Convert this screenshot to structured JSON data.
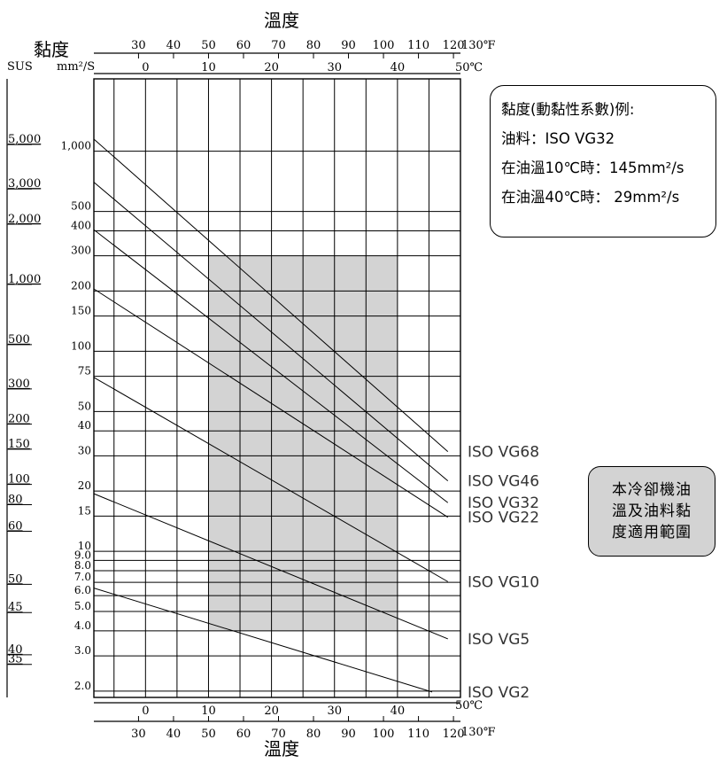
{
  "chart_data": {
    "type": "line",
    "title": "",
    "x_axis_title": "溫度",
    "y_axis_title": "黏度",
    "x_celsius": {
      "unit": "50℃",
      "ticks": [
        0,
        10,
        20,
        30,
        40
      ],
      "range": [
        -8.2,
        50
      ]
    },
    "x_fahrenheit": {
      "unit": "130℉",
      "ticks": [
        30,
        40,
        50,
        60,
        70,
        80,
        90,
        100,
        110,
        120
      ]
    },
    "y_kinematic": {
      "unit": "mm²/S",
      "scale": "log",
      "range": [
        1.86,
        2300
      ],
      "ticks": [
        "1,000",
        "500",
        "400",
        "300",
        "200",
        "150",
        "100",
        "75",
        "50",
        "40",
        "30",
        "20",
        "15",
        "10",
        "9.0",
        "8.0",
        "7.0",
        "6.0",
        "5.0",
        "4.0",
        "3.0",
        "2.0"
      ]
    },
    "y_sus": {
      "unit": "SUS",
      "ticks": [
        "5,000",
        "3,000",
        "2,000",
        "1,000",
        "500",
        "300",
        "200",
        "150",
        "100",
        "80",
        "60",
        "50",
        "45",
        "40",
        "35"
      ]
    },
    "series": [
      {
        "name": "ISO VG68",
        "points": [
          [
            -8.2,
            1150
          ],
          [
            48,
            31.5
          ]
        ]
      },
      {
        "name": "ISO VG46",
        "points": [
          [
            -8.2,
            700
          ],
          [
            48,
            22.5
          ]
        ]
      },
      {
        "name": "ISO VG32",
        "points": [
          [
            -8.2,
            405
          ],
          [
            48,
            17.5
          ]
        ]
      },
      {
        "name": "ISO VG22",
        "points": [
          [
            -8.2,
            205
          ],
          [
            48,
            14.8
          ]
        ]
      },
      {
        "name": "ISO VG10",
        "points": [
          [
            -8.2,
            74
          ],
          [
            48,
            7.05
          ]
        ]
      },
      {
        "name": "ISO VG5",
        "points": [
          [
            -8.2,
            19.4
          ],
          [
            48,
            3.65
          ]
        ]
      },
      {
        "name": "ISO VG2",
        "points": [
          [
            -8.2,
            6.55
          ],
          [
            45.5,
            1.98
          ]
        ]
      }
    ],
    "shaded_region": {
      "x": [
        10,
        40
      ],
      "y": [
        4.0,
        300
      ]
    }
  },
  "example": {
    "line1": "黏度(動黏性系數)例:",
    "line2": "油料：ISO VG32",
    "line3": "在油溫10℃時：145mm²/s",
    "line4": "在油溫40℃時： 29mm²/s"
  },
  "legend_note": {
    "line1": "本冷卻機油",
    "line2": "溫及油料黏",
    "line3": "度適用範圍"
  },
  "colors": {
    "shade": "#d3d3d3",
    "grid": "#000000"
  }
}
